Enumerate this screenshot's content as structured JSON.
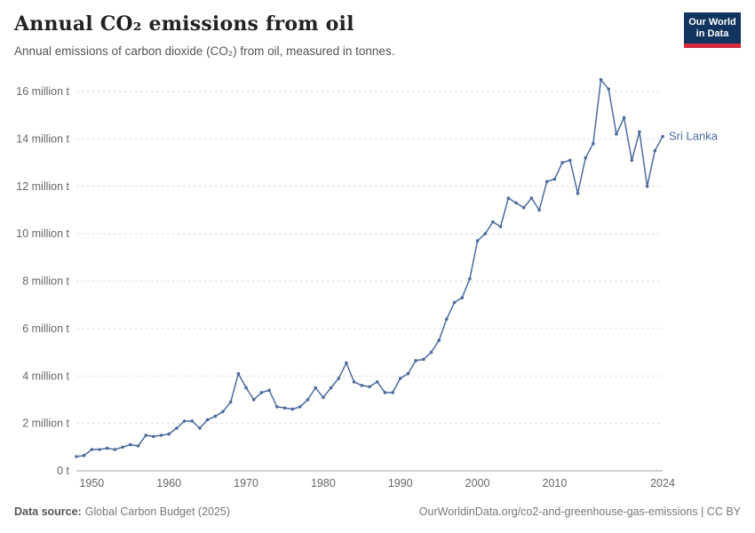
{
  "header": {
    "title": "Annual CO₂ emissions from oil",
    "subtitle": "Annual emissions of carbon dioxide (CO₂) from oil, measured in tonnes.",
    "logo": {
      "line1": "Our World",
      "line2": "in Data"
    }
  },
  "footer": {
    "source_label": "Data source:",
    "source_value": "Global Carbon Budget (2025)",
    "right_text": "OurWorldinData.org/co2-and-greenhouse-gas-emissions | CC BY"
  },
  "colors": {
    "line": "#4C6A9C",
    "grid": "#dddddd",
    "axis": "#a1a1a1",
    "tick_label": "#666666",
    "logo_bg": "#12355f",
    "logo_red": "#d42b3c"
  },
  "chart_data": {
    "type": "line",
    "title": "Annual CO₂ emissions from oil",
    "entity": "Sri Lanka",
    "unit": "million tonnes",
    "grid": true,
    "legend_position": "end-of-line",
    "xlim": [
      1948,
      2024
    ],
    "ylim_million": [
      0,
      16
    ],
    "xticks": [
      1950,
      1960,
      1970,
      1980,
      1990,
      2000,
      2010,
      2024
    ],
    "yticks_million": [
      0,
      2,
      4,
      6,
      8,
      10,
      12,
      14,
      16
    ],
    "ytick_labels": [
      "0 t",
      "2 million t",
      "4 million t",
      "6 million t",
      "8 million t",
      "10 million t",
      "12 million t",
      "14 million t",
      "16 million t"
    ],
    "years": [
      1948,
      1949,
      1950,
      1951,
      1952,
      1953,
      1954,
      1955,
      1956,
      1957,
      1958,
      1959,
      1960,
      1961,
      1962,
      1963,
      1964,
      1965,
      1966,
      1967,
      1968,
      1969,
      1970,
      1971,
      1972,
      1973,
      1974,
      1975,
      1976,
      1977,
      1978,
      1979,
      1980,
      1981,
      1982,
      1983,
      1984,
      1985,
      1986,
      1987,
      1988,
      1989,
      1990,
      1991,
      1992,
      1993,
      1994,
      1995,
      1996,
      1997,
      1998,
      1999,
      2000,
      2001,
      2002,
      2003,
      2004,
      2005,
      2006,
      2007,
      2008,
      2009,
      2010,
      2011,
      2012,
      2013,
      2014,
      2015,
      2016,
      2017,
      2018,
      2019,
      2020,
      2021,
      2022,
      2023,
      2024
    ],
    "values_million_tonnes": [
      0.6,
      0.65,
      0.9,
      0.9,
      0.95,
      0.9,
      1.0,
      1.1,
      1.05,
      1.5,
      1.45,
      1.5,
      1.55,
      1.8,
      2.1,
      2.1,
      1.8,
      2.15,
      2.3,
      2.5,
      2.9,
      4.1,
      3.5,
      3.0,
      3.3,
      3.4,
      2.7,
      2.65,
      2.6,
      2.7,
      3.0,
      3.5,
      3.1,
      3.5,
      3.9,
      4.55,
      3.75,
      3.6,
      3.55,
      3.75,
      3.3,
      3.3,
      3.9,
      4.1,
      4.65,
      4.7,
      5.0,
      5.5,
      6.4,
      7.1,
      7.3,
      8.1,
      9.7,
      10.0,
      10.5,
      10.3,
      11.5,
      11.3,
      11.1,
      11.5,
      11.0,
      12.2,
      12.3,
      13.0,
      13.1,
      11.7,
      13.2,
      13.8,
      16.5,
      16.1,
      14.2,
      14.9,
      13.1,
      14.3,
      12.0,
      13.5,
      14.1
    ]
  }
}
